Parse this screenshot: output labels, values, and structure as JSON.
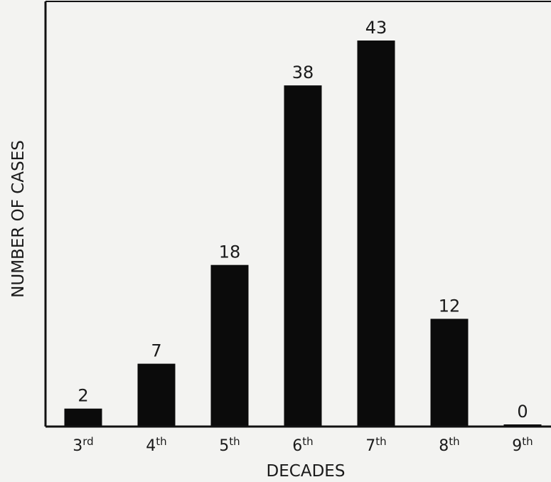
{
  "chart_data": {
    "type": "bar",
    "title": "",
    "xlabel": "DECADES",
    "ylabel": "NUMBER OF CASES",
    "categories": [
      {
        "base": "3",
        "suffix": "rd"
      },
      {
        "base": "4",
        "suffix": "th"
      },
      {
        "base": "5",
        "suffix": "th"
      },
      {
        "base": "6",
        "suffix": "th"
      },
      {
        "base": "7",
        "suffix": "th"
      },
      {
        "base": "8",
        "suffix": "th"
      },
      {
        "base": "9",
        "suffix": "th"
      }
    ],
    "values": [
      2,
      7,
      18,
      38,
      43,
      12,
      0
    ],
    "data_labels": [
      "2",
      "7",
      "18",
      "38",
      "43",
      "12",
      "0"
    ],
    "ylim": [
      0,
      47
    ],
    "grid": false,
    "legend": "none",
    "colors": {
      "bar": "#0b0b0b",
      "axis": "#111111",
      "background": "#f3f3f1"
    }
  }
}
